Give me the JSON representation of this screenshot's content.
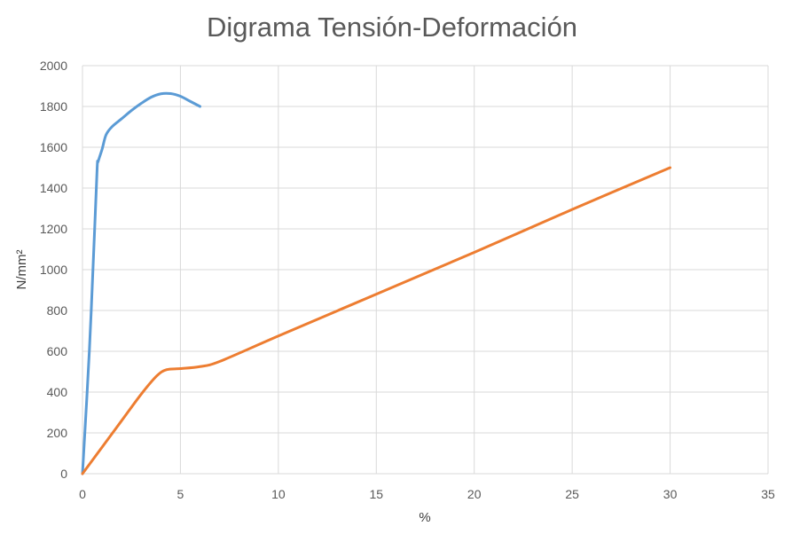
{
  "chart_data": {
    "type": "line",
    "title": "Digrama Tensión-Deformación",
    "xlabel": "%",
    "ylabel": "N/mm²",
    "xlim": [
      0,
      35
    ],
    "ylim": [
      0,
      2000
    ],
    "xticks": [
      0,
      5,
      10,
      15,
      20,
      25,
      30,
      35
    ],
    "yticks": [
      0,
      200,
      400,
      600,
      800,
      1000,
      1200,
      1400,
      1600,
      1800,
      2000
    ],
    "grid": true,
    "legend": "none",
    "series": [
      {
        "color": "#5b9bd5",
        "points": [
          [
            0,
            0
          ],
          [
            0.35,
            600
          ],
          [
            0.6,
            1150
          ],
          [
            0.75,
            1500
          ],
          [
            0.8,
            1530
          ],
          [
            1.0,
            1590
          ],
          [
            1.2,
            1660
          ],
          [
            1.5,
            1700
          ],
          [
            2.0,
            1740
          ],
          [
            2.5,
            1780
          ],
          [
            3.0,
            1815
          ],
          [
            3.5,
            1845
          ],
          [
            4.0,
            1862
          ],
          [
            4.5,
            1863
          ],
          [
            5.0,
            1850
          ],
          [
            5.5,
            1825
          ],
          [
            6.0,
            1800
          ]
        ]
      },
      {
        "color": "#ed7d31",
        "points": [
          [
            0,
            0
          ],
          [
            1,
            130
          ],
          [
            2,
            260
          ],
          [
            3,
            390
          ],
          [
            3.8,
            480
          ],
          [
            4.3,
            510
          ],
          [
            5,
            515
          ],
          [
            6,
            525
          ],
          [
            7,
            550
          ],
          [
            10,
            675
          ],
          [
            15,
            880
          ],
          [
            20,
            1085
          ],
          [
            25,
            1295
          ],
          [
            30,
            1500
          ]
        ]
      }
    ]
  }
}
